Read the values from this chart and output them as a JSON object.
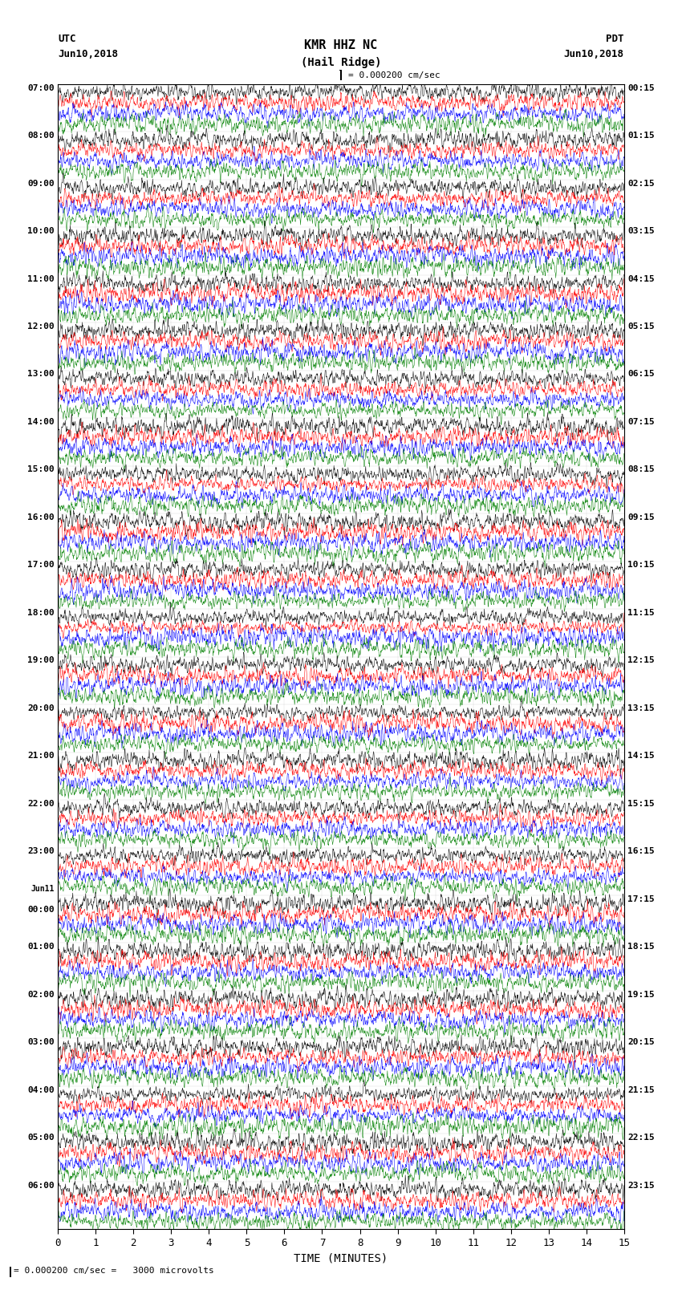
{
  "title_line1": "KMR HHZ NC",
  "title_line2": "(Hail Ridge)",
  "left_header_line1": "UTC",
  "left_header_line2": "Jun10,2018",
  "right_header_line1": "PDT",
  "right_header_line2": "Jun10,2018",
  "scale_label": "= 0.000200 cm/sec",
  "scale_label2": "= 0.000200 cm/sec =   3000 microvolts",
  "xlabel": "TIME (MINUTES)",
  "xticks": [
    0,
    1,
    2,
    3,
    4,
    5,
    6,
    7,
    8,
    9,
    10,
    11,
    12,
    13,
    14,
    15
  ],
  "time_duration_minutes": 15,
  "left_times": [
    "07:00",
    "08:00",
    "09:00",
    "10:00",
    "11:00",
    "12:00",
    "13:00",
    "14:00",
    "15:00",
    "16:00",
    "17:00",
    "18:00",
    "19:00",
    "20:00",
    "21:00",
    "22:00",
    "23:00",
    "Jun11\n00:00",
    "01:00",
    "02:00",
    "03:00",
    "04:00",
    "05:00",
    "06:00"
  ],
  "right_times": [
    "00:15",
    "01:15",
    "02:15",
    "03:15",
    "04:15",
    "05:15",
    "06:15",
    "07:15",
    "08:15",
    "09:15",
    "10:15",
    "11:15",
    "12:15",
    "13:15",
    "14:15",
    "15:15",
    "16:15",
    "17:15",
    "18:15",
    "19:15",
    "20:15",
    "21:15",
    "22:15",
    "23:15"
  ],
  "n_rows": 24,
  "n_channels": 4,
  "colors": [
    "black",
    "red",
    "blue",
    "green"
  ],
  "bg_color": "white",
  "trace_amplitude": 0.35,
  "noise_scale": [
    1.0,
    1.2,
    1.0,
    0.8
  ],
  "seed": 42
}
